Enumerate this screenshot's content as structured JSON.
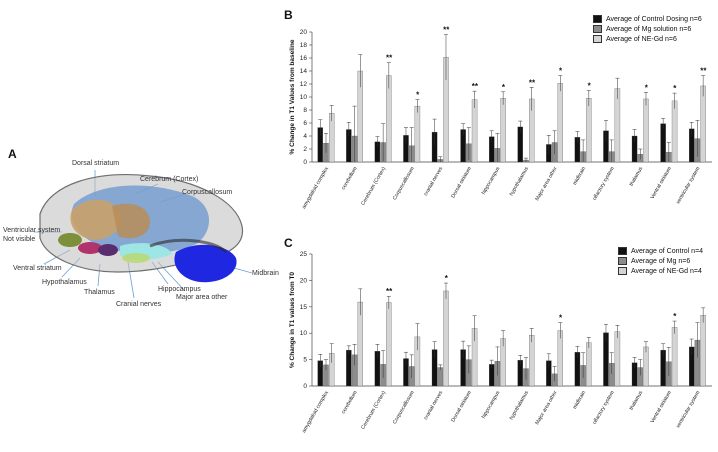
{
  "panel_a": {
    "letter": "A",
    "labels": {
      "dorsal_striatum": "Dorsal striatum",
      "cerebrum_cortex": "Cerebrum (Cortex)",
      "corpuscallosum": "Corpuscallosum",
      "ventricular_system": "Ventricular system Not visible",
      "ventral_striatum": "Ventral striatum",
      "hypothalamus": "Hypothalamus",
      "thalamus": "Thalamus",
      "cranial_nerves": "Cranial nerves",
      "hippocampus": "Hippocampus",
      "major_area_other": "Major area other",
      "midbrain": "Midbrain"
    }
  },
  "colors": {
    "control": "#111111",
    "mg": "#8c8c8c",
    "nd": "#d4d4d4"
  },
  "chart_data": [
    {
      "panel": "B",
      "type": "bar",
      "title": "",
      "ylabel": "% Change in T1 Values from baseline",
      "xlabel": "",
      "ylim": [
        0,
        20
      ],
      "yticks": [
        0,
        2,
        4,
        6,
        8,
        10,
        12,
        14,
        16,
        18,
        20
      ],
      "categories": [
        "amygdaloid complex",
        "cerebellum",
        "Cerebrum (Cortex)",
        "Corpuscallosum",
        "cranial nerves",
        "Dorsal striatum",
        "hippocampus",
        "hypothalamus",
        "Major area other",
        "midbrain",
        "olfactory system",
        "thalamus",
        "Ventral striatum",
        "ventricular system"
      ],
      "series": [
        {
          "name": "Average of Control Dosing  n=6",
          "values": [
            5.3,
            5.0,
            3.1,
            4.1,
            4.6,
            5.0,
            3.9,
            5.4,
            2.7,
            3.8,
            4.8,
            4.0,
            5.9,
            5.1
          ],
          "errors": [
            1.2,
            1.1,
            0.8,
            1.2,
            2.0,
            0.9,
            0.9,
            0.9,
            1.4,
            0.9,
            1.6,
            1.0,
            0.8,
            1.0
          ]
        },
        {
          "name": "Average of Mg solution  n=6",
          "values": [
            2.9,
            4.0,
            3.0,
            2.5,
            0.4,
            2.8,
            2.1,
            0.3,
            3.0,
            1.6,
            1.6,
            1.2,
            1.5,
            3.6
          ],
          "errors": [
            1.5,
            4.6,
            2.9,
            2.8,
            0.4,
            2.5,
            2.3,
            0.3,
            1.8,
            1.8,
            1.8,
            0.8,
            1.5,
            2.8
          ]
        },
        {
          "name": "Average of NE-Gd   n=6",
          "values": [
            7.5,
            14.0,
            13.3,
            8.6,
            16.1,
            9.6,
            9.8,
            9.7,
            12.1,
            9.8,
            11.3,
            9.7,
            9.4,
            11.7
          ],
          "errors": [
            1.2,
            2.5,
            2.0,
            1.0,
            3.5,
            1.3,
            1.0,
            1.8,
            1.2,
            1.2,
            1.6,
            1.0,
            1.2,
            1.6
          ]
        }
      ],
      "annotations": [
        "",
        "",
        "**",
        "*",
        "**",
        "**",
        "*",
        "**",
        "*",
        "*",
        "",
        "*",
        "*",
        "**"
      ]
    },
    {
      "panel": "C",
      "type": "bar",
      "title": "",
      "ylabel": "% Change in T1 values from T0",
      "xlabel": "",
      "ylim": [
        0,
        25
      ],
      "yticks": [
        0,
        5,
        10,
        15,
        20,
        25
      ],
      "categories": [
        "amygdaloid complex",
        "cerebellum",
        "Cerebrum (Cortex)",
        "Corpuscallosum",
        "cranial nerves",
        "Dorsal striatum",
        "hippocampus",
        "hypothalamus",
        "Major area other",
        "midbrain",
        "olfactory system",
        "thalamus",
        "Ventral striatum",
        "ventricular system"
      ],
      "series": [
        {
          "name": "Average of Control n=4",
          "values": [
            4.8,
            6.8,
            6.6,
            5.2,
            6.9,
            6.9,
            4.1,
            4.9,
            4.8,
            6.4,
            10.1,
            4.4,
            6.8,
            7.4
          ],
          "errors": [
            1.2,
            0.8,
            1.3,
            1.2,
            1.5,
            1.6,
            0.8,
            0.9,
            1.3,
            1.1,
            1.6,
            1.0,
            1.2,
            1.5
          ]
        },
        {
          "name": "Average of Mg n=6",
          "values": [
            4.0,
            5.9,
            4.1,
            3.7,
            3.5,
            5.0,
            4.7,
            3.3,
            2.3,
            3.9,
            4.3,
            3.5,
            4.6,
            8.7
          ],
          "errors": [
            1.0,
            2.0,
            2.6,
            2.2,
            0.5,
            2.6,
            2.7,
            2.1,
            1.4,
            2.4,
            2.0,
            1.5,
            2.7,
            3.3
          ]
        },
        {
          "name": "Average of NE-Gd n=4",
          "values": [
            6.2,
            15.9,
            15.8,
            9.3,
            18.0,
            10.9,
            9.0,
            9.6,
            10.5,
            8.2,
            10.3,
            7.4,
            11.1,
            13.4
          ],
          "errors": [
            1.8,
            2.5,
            1.2,
            2.5,
            1.5,
            2.4,
            1.5,
            1.3,
            1.5,
            1.0,
            1.2,
            1.0,
            1.2,
            1.4
          ]
        }
      ],
      "annotations": [
        "",
        "",
        "**",
        "",
        "*",
        "",
        "",
        "",
        "*",
        "",
        "",
        "",
        "*",
        ""
      ]
    }
  ]
}
